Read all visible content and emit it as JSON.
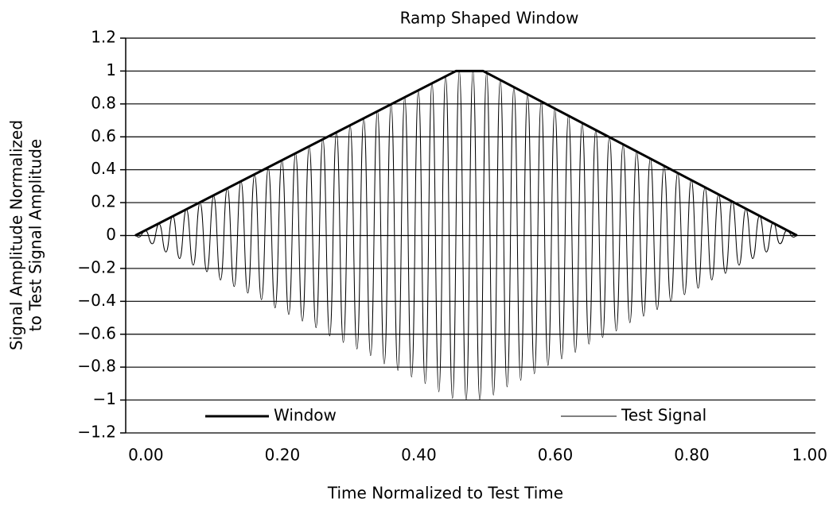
{
  "chart_data": {
    "type": "line",
    "title": "Ramp Shaped Window",
    "x_label": "Time Normalized to Test Time",
    "y_label": [
      "Signal Amplitude Normalized",
      "to Test Signal Amplitude"
    ],
    "xlim": [
      0,
      1
    ],
    "ylim": [
      -1.2,
      1.2
    ],
    "xticks": [
      {
        "value": 0,
        "label": "0.00"
      },
      {
        "value": 0.2,
        "label": "0.20"
      },
      {
        "value": 0.4,
        "label": "0.40"
      },
      {
        "value": 0.6,
        "label": "0.60"
      },
      {
        "value": 0.8,
        "label": "0.80"
      },
      {
        "value": 1,
        "label": "1.00"
      }
    ],
    "yticks": [
      1.2,
      1,
      0.8,
      0.6,
      0.4,
      0.2,
      0,
      {
        "value": -0.2,
        "label": "−0.2"
      },
      {
        "value": -0.4,
        "label": "−0.4"
      },
      {
        "value": -0.6,
        "label": "−0.6"
      },
      {
        "value": -0.8,
        "label": "−0.8"
      },
      {
        "value": -1,
        "label": "−1"
      },
      {
        "value": -1.2,
        "label": "−1.2"
      }
    ],
    "grid": true,
    "legend": "bottom",
    "series": [
      {
        "name": "Window",
        "color": "#000000",
        "width": 3,
        "x": [
          0.01,
          0.48,
          0.52,
          0.98
        ],
        "values": [
          0,
          1,
          1,
          0
        ]
      },
      {
        "name": "Test Signal",
        "color": "#000000",
        "width": 1,
        "x": [
          0.01,
          0.015,
          0.025,
          0.035,
          0.045,
          0.055,
          0.065,
          0.075,
          0.085,
          0.095,
          0.105,
          0.115,
          0.125,
          0.135,
          0.145,
          0.155,
          0.165,
          0.175,
          0.185,
          0.195,
          0.205,
          0.215,
          0.225,
          0.235,
          0.245,
          0.255,
          0.265,
          0.275,
          0.285,
          0.295,
          0.305,
          0.315,
          0.325,
          0.335,
          0.345,
          0.355,
          0.365,
          0.375,
          0.385,
          0.395,
          0.405,
          0.415,
          0.425,
          0.435,
          0.445,
          0.455,
          0.465,
          0.475,
          0.485,
          0.495,
          0.505,
          0.515,
          0.525,
          0.535,
          0.545,
          0.555,
          0.565,
          0.575,
          0.585,
          0.595,
          0.605,
          0.615,
          0.625,
          0.635,
          0.645,
          0.655,
          0.665,
          0.675,
          0.685,
          0.695,
          0.705,
          0.715,
          0.725,
          0.735,
          0.745,
          0.755,
          0.765,
          0.775,
          0.785,
          0.795,
          0.805,
          0.815,
          0.825,
          0.835,
          0.845,
          0.855,
          0.865,
          0.875,
          0.885,
          0.895,
          0.905,
          0.915,
          0.925,
          0.935,
          0.945,
          0.955,
          0.965,
          0.975,
          0.98
        ],
        "values": [
          0,
          -0.01,
          0.03,
          -0.05,
          0.07,
          -0.1,
          0.12,
          -0.14,
          0.16,
          -0.18,
          0.2,
          -0.22,
          0.24,
          -0.27,
          0.29,
          -0.31,
          0.33,
          -0.35,
          0.37,
          -0.39,
          0.41,
          -0.44,
          0.46,
          -0.48,
          0.5,
          -0.52,
          0.54,
          -0.56,
          0.59,
          -0.61,
          0.63,
          -0.65,
          0.67,
          -0.69,
          0.71,
          -0.73,
          0.76,
          -0.78,
          0.8,
          -0.82,
          0.84,
          -0.86,
          0.88,
          -0.9,
          0.93,
          -0.95,
          0.97,
          -0.99,
          1,
          -1,
          1,
          -1,
          0.99,
          -0.97,
          0.95,
          -0.92,
          0.9,
          -0.88,
          0.86,
          -0.84,
          0.82,
          -0.79,
          0.77,
          -0.75,
          0.73,
          -0.71,
          0.68,
          -0.66,
          0.64,
          -0.62,
          0.6,
          -0.58,
          0.55,
          -0.53,
          0.51,
          -0.49,
          0.47,
          -0.45,
          0.42,
          -0.4,
          0.38,
          -0.36,
          0.34,
          -0.32,
          0.29,
          -0.27,
          0.25,
          -0.23,
          0.21,
          -0.18,
          0.16,
          -0.14,
          0.12,
          -0.1,
          0.08,
          -0.05,
          0.03,
          -0.01,
          0
        ]
      }
    ]
  }
}
